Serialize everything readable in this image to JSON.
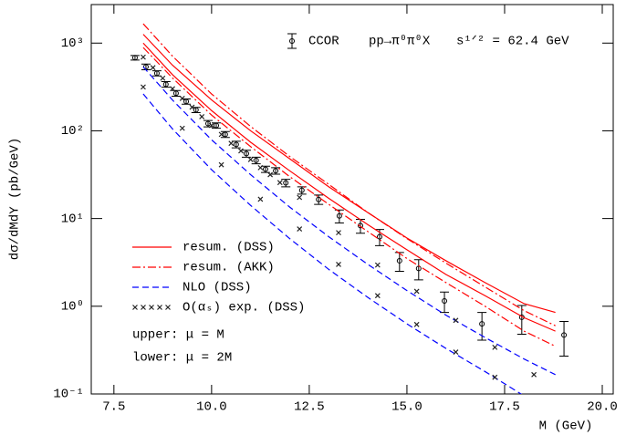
{
  "chart_data": {
    "type": "line",
    "xlabel": "M (GeV)",
    "ylabel": "dσ/dMdY (pb/GeV)",
    "process": "pp→π⁰π⁰X",
    "energy": "s¹ᐟ² = 62.4 GeV",
    "notes": [
      "upper: μ = M",
      "lower: μ = 2M"
    ],
    "log_y": true,
    "xlim": [
      6.92,
      20.28
    ],
    "ylim": [
      0.1,
      2750
    ],
    "xticks": [
      7.5,
      {
        "value": 10,
        "label": "10.0"
      },
      12.5,
      {
        "value": 15,
        "label": "15.0"
      },
      17.5,
      {
        "value": 20,
        "label": "20.0"
      }
    ],
    "yticks": [
      {
        "value": 0.1,
        "label": "10⁻¹"
      },
      {
        "value": 1,
        "label": "10⁰"
      },
      {
        "value": 10,
        "label": "10¹"
      },
      {
        "value": 100,
        "label": "10²"
      },
      {
        "value": 1000,
        "label": "10³"
      }
    ],
    "data": {
      "name": "CCOR",
      "color": "#000000",
      "x": [
        8.04,
        8.32,
        8.6,
        8.83,
        9.09,
        9.35,
        9.6,
        9.91,
        10.12,
        10.35,
        10.63,
        10.89,
        11.14,
        11.38,
        11.64,
        11.9,
        12.31,
        12.74,
        13.27,
        13.81,
        14.3,
        14.81,
        15.3,
        15.96,
        16.92,
        17.94,
        19.02
      ],
      "values": [
        681,
        537,
        453,
        339,
        268,
        216,
        173,
        121,
        115,
        91,
        70,
        55,
        46,
        36.5,
        35,
        25.5,
        21,
        16.5,
        10.7,
        8.3,
        6.2,
        3.3,
        2.7,
        1.15,
        0.63,
        0.75,
        0.47
      ],
      "errors": [
        40,
        40,
        30,
        25,
        20,
        15,
        12,
        10,
        8,
        7,
        6,
        5,
        4,
        3,
        3,
        2.5,
        2,
        2,
        1.8,
        1.5,
        1.3,
        0.8,
        0.7,
        0.3,
        0.22,
        0.27,
        0.2
      ]
    },
    "curve_x": [
      8.25,
      9,
      10,
      11,
      12,
      13,
      14,
      15,
      16,
      17,
      18,
      18.8
    ],
    "series": [
      {
        "name": "resum. (DSS)",
        "color": "#ff0000",
        "dash": "solid",
        "curves": [
          {
            "values": [
              1260,
              560,
              225,
              100,
              48,
              23,
              11.7,
              6.0,
              3.3,
              1.86,
              1.07,
              0.85
            ]
          },
          {
            "values": [
              1000,
              436,
              170,
              74,
              35,
              17,
              8.5,
              4.4,
              2.3,
              1.32,
              0.74,
              0.52
            ]
          }
        ]
      },
      {
        "name": "resum. (AKK)",
        "color": "#ff0000",
        "dash": "dashdot",
        "curves": [
          {
            "values": [
              1660,
              710,
              263,
              112,
              51,
              24.5,
              11.7,
              5.9,
              3.1,
              1.66,
              0.89,
              0.6
            ]
          },
          {
            "values": [
              890,
              400,
              151,
              66,
              30,
              14.5,
              7.1,
              3.5,
              1.86,
              1.0,
              0.52,
              0.35
            ]
          }
        ]
      },
      {
        "name": "NLO (DSS)",
        "color": "#0000ff",
        "dash": "dashed",
        "curves": [
          {
            "values": [
              537,
              224,
              79,
              31.6,
              13.5,
              6.2,
              3.0,
              1.51,
              0.79,
              0.44,
              0.25,
              0.166
            ]
          },
          {
            "values": [
              263,
              105,
              36,
              14.1,
              5.9,
              2.63,
              1.26,
              0.63,
              0.33,
              0.18,
              0.095,
              0.068
            ]
          }
        ]
      },
      {
        "name": "O(αₛ) exp. (DSS)",
        "color": "#222222",
        "marker": "x",
        "sets": [
          {
            "x": [
              8.25,
              8.5,
              8.75,
              9.0,
              9.25,
              9.5,
              9.75,
              10.0,
              10.25,
              10.5,
              10.75,
              11.0,
              11.25,
              11.5,
              11.75,
              12.25,
              13.25,
              14.25,
              15.25,
              16.25,
              17.25,
              18.25
            ],
            "values": [
              692,
              525,
              398,
              302,
              234,
              186,
              145,
              115,
              91,
              72,
              59,
              47,
              38,
              31.6,
              25.7,
              17.4,
              6.9,
              2.95,
              1.48,
              0.69,
              0.34,
              0.166
            ]
          },
          {
            "x": [
              8.25,
              9.25,
              10.25,
              11.25,
              12.25,
              13.25,
              14.25,
              15.25,
              16.25,
              17.25
            ],
            "values": [
              316,
              107,
              41,
              16.6,
              7.6,
              3.0,
              1.32,
              0.62,
              0.3,
              0.155
            ]
          }
        ]
      }
    ]
  }
}
